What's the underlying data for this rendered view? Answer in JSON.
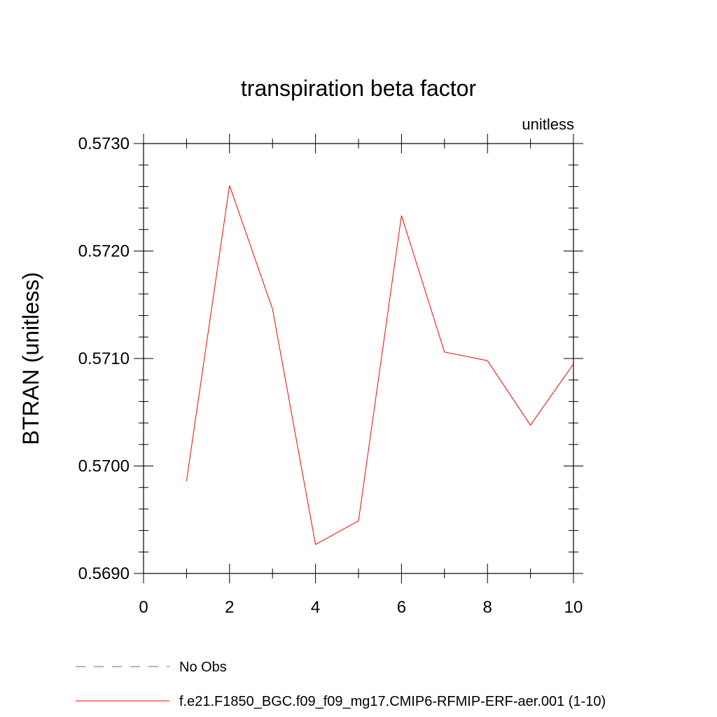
{
  "chart_data": {
    "type": "line",
    "title": "transpiration beta factor",
    "units_label": "unitless",
    "ylabel": "BTRAN  (unitless)",
    "xlabel": "",
    "xlim": [
      0,
      10
    ],
    "ylim": [
      0.569,
      0.573
    ],
    "x_ticks": [
      0,
      2,
      4,
      6,
      8,
      10
    ],
    "x_tick_labels": [
      "0",
      "2",
      "4",
      "6",
      "8",
      "10"
    ],
    "x_minor_step": 1,
    "y_ticks": [
      0.569,
      0.57,
      0.571,
      0.572,
      0.573
    ],
    "y_tick_labels": [
      "0.5690",
      "0.5700",
      "0.5710",
      "0.5720",
      "0.5730"
    ],
    "y_minor_step": 0.0002,
    "grid": false,
    "legend_position": "bottom",
    "series": [
      {
        "name": "f.e21.F1850_BGC.f09_f09_mg17.CMIP6-RFMIP-ERF-aer.001 (1-10)",
        "color": "#ff0000",
        "style": "solid",
        "x": [
          1,
          2,
          3,
          4,
          5,
          6,
          7,
          8,
          9,
          10
        ],
        "values": [
          0.56986,
          0.57261,
          0.57146,
          0.56927,
          0.56949,
          0.57233,
          0.57106,
          0.57098,
          0.57038,
          0.57095
        ]
      }
    ],
    "legend": [
      {
        "label": "No Obs",
        "color": "#6666aa",
        "style": "dashed"
      },
      {
        "label": "f.e21.F1850_BGC.f09_f09_mg17.CMIP6-RFMIP-ERF-aer.001 (1-10)",
        "color": "#ff0000",
        "style": "solid"
      }
    ]
  }
}
